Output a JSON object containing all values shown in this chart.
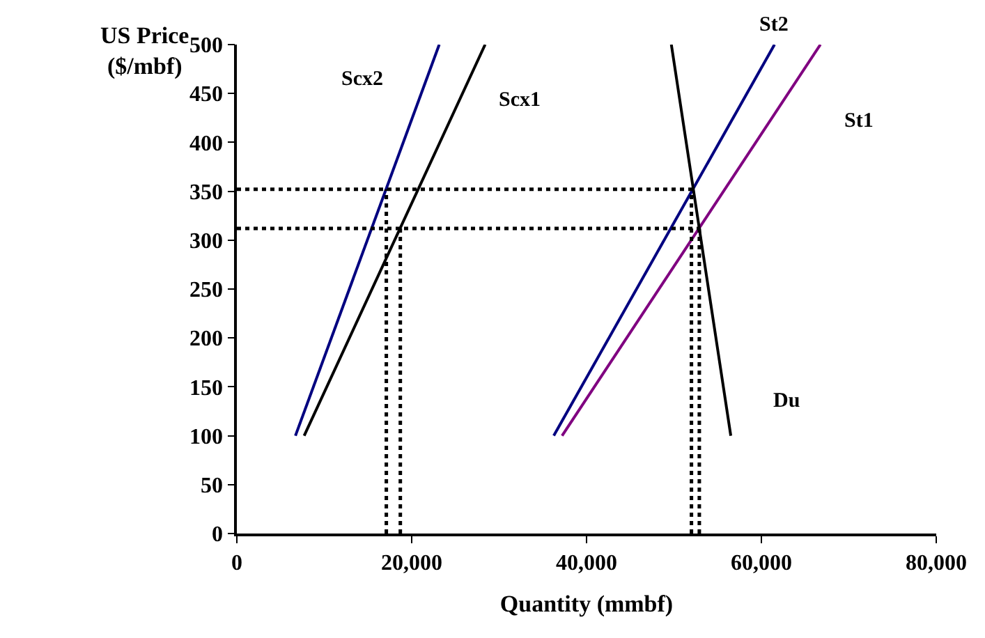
{
  "chart_data": {
    "type": "line",
    "xlabel": "Quantity (mmbf)",
    "ylabel": "US Price\n($/mbf)",
    "xlim": [
      0,
      80000
    ],
    "xticks": [
      0,
      {
        "value": 20000,
        "label": "20,000"
      },
      {
        "value": 40000,
        "label": "40,000"
      },
      {
        "value": 60000,
        "label": "60,000"
      },
      {
        "value": 80000,
        "label": "80,000"
      }
    ],
    "ylim": [
      0,
      500
    ],
    "yticks": [
      0,
      50,
      100,
      150,
      200,
      250,
      300,
      350,
      400,
      450,
      500
    ],
    "legend": false,
    "marker": "none",
    "series": [
      {
        "name": "Scx2",
        "color": "#000080",
        "x": [
          6700,
          23150
        ],
        "values": [
          100,
          500
        ],
        "line_style": "solid"
      },
      {
        "name": "Scx1",
        "color": "#000000",
        "x": [
          7700,
          28400
        ],
        "values": [
          100,
          500
        ],
        "line_style": "solid"
      },
      {
        "name": "St2",
        "color": "#000080",
        "x": [
          36250,
          61500
        ],
        "values": [
          100,
          500
        ],
        "line_style": "solid"
      },
      {
        "name": "St1",
        "color": "#800080",
        "x": [
          37200,
          66750
        ],
        "values": [
          100,
          500
        ],
        "line_style": "solid"
      },
      {
        "name": "Du",
        "color": "#000000",
        "x": [
          49700,
          56500
        ],
        "values": [
          500,
          100
        ],
        "line_style": "solid"
      },
      {
        "color": "#000000",
        "x": [
          0,
          52200
        ],
        "values": [
          352,
          352
        ],
        "line_style": "dotted"
      },
      {
        "color": "#000000",
        "x": [
          0,
          53000
        ],
        "values": [
          312,
          312
        ],
        "line_style": "dotted"
      },
      {
        "color": "#000000",
        "x": [
          17100,
          17100
        ],
        "values": [
          0,
          352
        ],
        "line_style": "dotted"
      },
      {
        "color": "#000000",
        "x": [
          18700,
          18700
        ],
        "values": [
          0,
          312
        ],
        "line_style": "dotted"
      },
      {
        "color": "#000000",
        "x": [
          52000,
          52000
        ],
        "values": [
          0,
          352
        ],
        "line_style": "dotted"
      },
      {
        "color": "#000000",
        "x": [
          52900,
          52900
        ],
        "values": [
          0,
          312
        ],
        "line_style": "dotted"
      }
    ]
  }
}
